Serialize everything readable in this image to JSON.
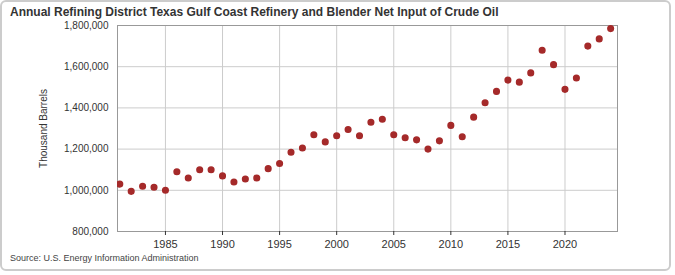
{
  "chart_data": {
    "type": "scatter",
    "title": "Annual Refining District Texas Gulf Coast Refinery and Blender Net Input of Crude Oil",
    "caption": "Source: U.S. Energy Information Administration",
    "y_label": "Thousand Barrels",
    "x": [
      1981,
      1982,
      1983,
      1984,
      1985,
      1986,
      1987,
      1988,
      1989,
      1990,
      1991,
      1992,
      1993,
      1994,
      1995,
      1996,
      1997,
      1998,
      1999,
      2000,
      2001,
      2002,
      2003,
      2004,
      2005,
      2006,
      2007,
      2008,
      2009,
      2010,
      2011,
      2012,
      2013,
      2014,
      2015,
      2016,
      2017,
      2018,
      2019,
      2020,
      2021,
      2022,
      2023,
      2024
    ],
    "values": [
      1030000,
      995000,
      1020000,
      1015000,
      1000000,
      1090000,
      1060000,
      1100000,
      1100000,
      1070000,
      1040000,
      1055000,
      1060000,
      1105000,
      1130000,
      1185000,
      1205000,
      1270000,
      1235000,
      1265000,
      1295000,
      1265000,
      1330000,
      1345000,
      1270000,
      1255000,
      1245000,
      1200000,
      1240000,
      1315000,
      1260000,
      1355000,
      1425000,
      1480000,
      1535000,
      1525000,
      1570000,
      1680000,
      1610000,
      1490000,
      1545000,
      1700000,
      1735000,
      1785000
    ],
    "color": "#a52a2a",
    "marker": "circle",
    "xlim": [
      1980.8,
      2024.6
    ],
    "xticks": [
      1985,
      1990,
      1995,
      2000,
      2005,
      2010,
      2015,
      2020
    ],
    "ylim": [
      800000,
      1800000
    ],
    "yticks": [
      {
        "value": 800000,
        "label": "800,000"
      },
      {
        "value": 1000000,
        "label": "1,000,000"
      },
      {
        "value": 1200000,
        "label": "1,200,000"
      },
      {
        "value": 1400000,
        "label": "1,400,000"
      },
      {
        "value": 1600000,
        "label": "1,600,000"
      },
      {
        "value": 1800000,
        "label": "1,800,000"
      }
    ],
    "grid": true
  }
}
